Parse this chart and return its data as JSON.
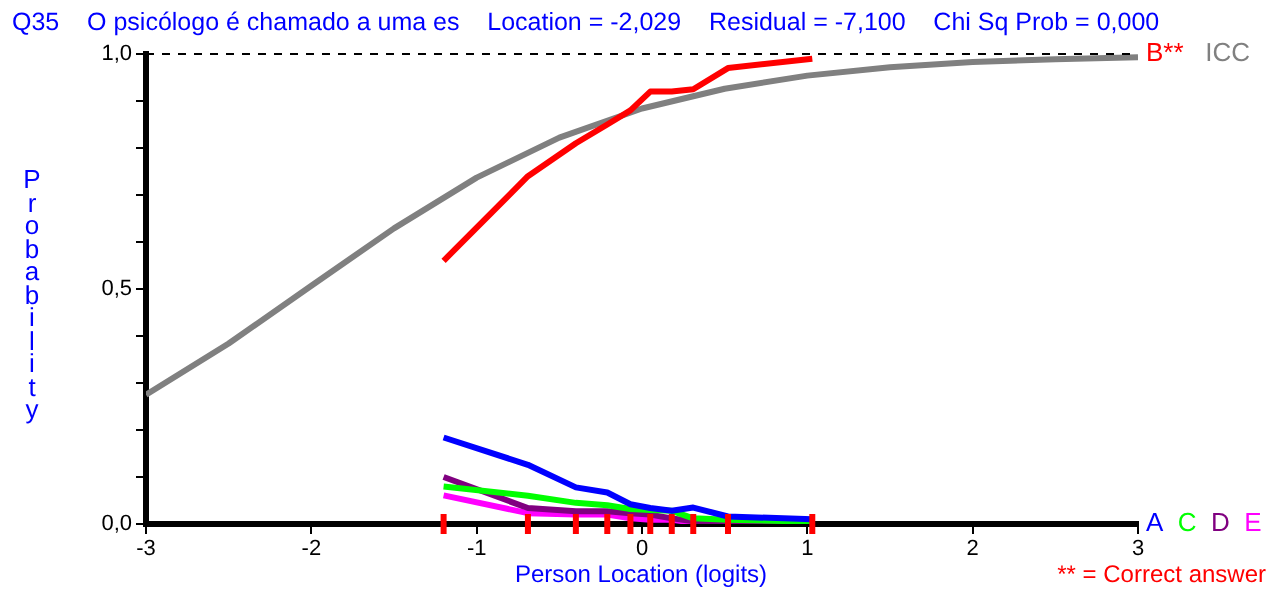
{
  "chart_data": {
    "type": "line",
    "title": "Q35    O psicólogo é chamado a uma es    Location = -2,029    Residual = -7,100    Chi Sq Prob = 0,000",
    "xlabel": "Person Location (logits)",
    "ylabel": "Probability",
    "x": [
      -1.2,
      -0.69,
      -0.4,
      -0.21,
      -0.07,
      0.05,
      0.18,
      0.31,
      0.52,
      1.03
    ],
    "series": [
      {
        "name": "A",
        "color": "#0000ff",
        "values": [
          0.184,
          0.126,
          0.078,
          0.067,
          0.042,
          0.034,
          0.028,
          0.035,
          0.016,
          0.01
        ]
      },
      {
        "name": "B**",
        "color": "#ff0000",
        "values": [
          0.56,
          0.74,
          0.81,
          0.85,
          0.88,
          0.92,
          0.92,
          0.925,
          0.97,
          0.99
        ]
      },
      {
        "name": "C",
        "color": "#00ff00",
        "values": [
          0.08,
          0.06,
          0.045,
          0.04,
          0.032,
          0.03,
          0.028,
          0.012,
          0.009,
          0.005
        ]
      },
      {
        "name": "D",
        "color": "#800080",
        "values": [
          0.1,
          0.034,
          0.027,
          0.027,
          0.023,
          0.02,
          0.012,
          0.006,
          0.003,
          0.002
        ]
      },
      {
        "name": "E",
        "color": "#ff00ff",
        "values": [
          0.061,
          0.023,
          0.02,
          0.02,
          0.012,
          0.009,
          0.009,
          0.003,
          0.003,
          null
        ]
      },
      {
        "name": "ICC",
        "color": "#808080",
        "x": [
          -3,
          -2.5,
          -2,
          -1.5,
          -1,
          -0.5,
          0,
          0.5,
          1,
          1.5,
          2,
          2.5,
          3
        ],
        "values": [
          0.275,
          0.384,
          0.507,
          0.629,
          0.737,
          0.822,
          0.884,
          0.926,
          0.954,
          0.972,
          0.983,
          0.989,
          0.993
        ]
      }
    ],
    "xlim": [
      -3,
      3
    ],
    "xticks": [
      -3,
      -2,
      -1,
      0,
      1,
      2,
      3
    ],
    "ylim": [
      0,
      1
    ],
    "yticks": [
      {
        "value": 0,
        "label": "0,0"
      },
      {
        "value": 0.1,
        "label": null
      },
      {
        "value": 0.2,
        "label": null
      },
      {
        "value": 0.3,
        "label": null
      },
      {
        "value": 0.4,
        "label": null
      },
      {
        "value": 0.5,
        "label": "0,5"
      },
      {
        "value": 0.6,
        "label": null
      },
      {
        "value": 0.7,
        "label": null
      },
      {
        "value": 0.8,
        "label": null
      },
      {
        "value": 0.9,
        "label": null
      },
      {
        "value": 1,
        "label": "1,0"
      }
    ],
    "ref_lines": [
      {
        "axis": "y",
        "value": 1,
        "label": null,
        "color": "#000000",
        "line_style": "dashed"
      }
    ],
    "annotations": [
      "** = Correct answer"
    ],
    "legend": "right",
    "grid": false
  }
}
